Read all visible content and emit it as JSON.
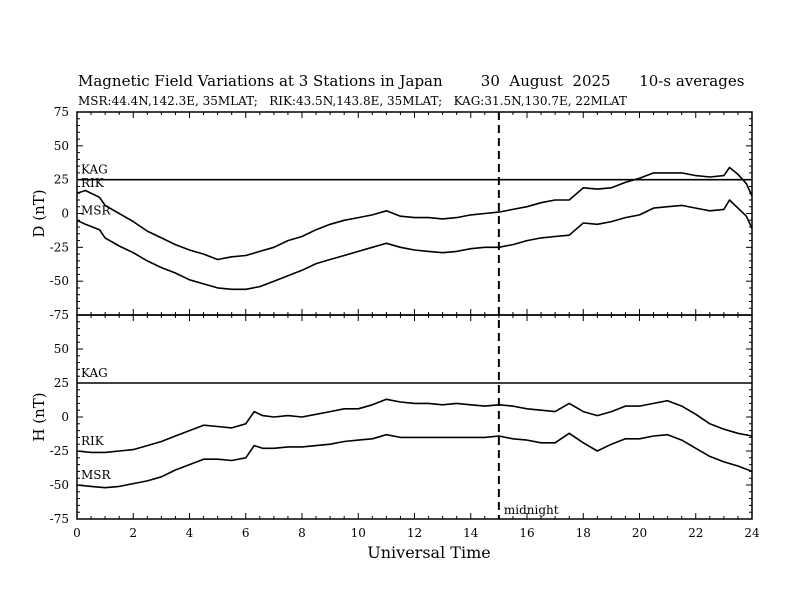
{
  "title": "Magnetic Field Variations at 3 Stations in Japan        30  August  2025      10-s averages",
  "subtitle": "MSR:44.4N,142.3E, 35MLAT;   RIK:43.5N,143.8E, 35MLAT;   KAG:31.5N,130.7E, 22MLAT",
  "chart_data": {
    "type": "line",
    "xlabel": "Universal Time",
    "xlim": [
      0,
      24
    ],
    "xticks": [
      0,
      2,
      4,
      6,
      8,
      10,
      12,
      14,
      16,
      18,
      20,
      22,
      24
    ],
    "annotation": {
      "label": "midnight",
      "x": 15
    },
    "panels": [
      {
        "ylabel": "D (nT)",
        "ylim": [
          -75,
          75
        ],
        "yticks": [
          75,
          50,
          25,
          0,
          -25,
          -50,
          -75
        ],
        "series": [
          {
            "name": "KAG",
            "label": "KAG",
            "points": [
              [
                0,
                25
              ],
              [
                24,
                25
              ]
            ]
          },
          {
            "name": "RIK",
            "label": "RIK",
            "points": [
              [
                0,
                15
              ],
              [
                0.3,
                17
              ],
              [
                0.8,
                12
              ],
              [
                1,
                6
              ],
              [
                1.5,
                0
              ],
              [
                2,
                -6
              ],
              [
                2.5,
                -13
              ],
              [
                3,
                -18
              ],
              [
                3.5,
                -23
              ],
              [
                4,
                -27
              ],
              [
                4.5,
                -30
              ],
              [
                5,
                -34
              ],
              [
                5.5,
                -32
              ],
              [
                6,
                -31
              ],
              [
                6.5,
                -28
              ],
              [
                7,
                -25
              ],
              [
                7.5,
                -20
              ],
              [
                8,
                -17
              ],
              [
                8.5,
                -12
              ],
              [
                9,
                -8
              ],
              [
                9.5,
                -5
              ],
              [
                10,
                -3
              ],
              [
                10.5,
                -1
              ],
              [
                11,
                2
              ],
              [
                11.5,
                -2
              ],
              [
                12,
                -3
              ],
              [
                12.5,
                -3
              ],
              [
                13,
                -4
              ],
              [
                13.5,
                -3
              ],
              [
                14,
                -1
              ],
              [
                14.5,
                0
              ],
              [
                15,
                1
              ],
              [
                15.5,
                3
              ],
              [
                16,
                5
              ],
              [
                16.5,
                8
              ],
              [
                17,
                10
              ],
              [
                17.5,
                10
              ],
              [
                18,
                19
              ],
              [
                18.5,
                18
              ],
              [
                19,
                19
              ],
              [
                19.5,
                23
              ],
              [
                20,
                26
              ],
              [
                20.5,
                30
              ],
              [
                21,
                30
              ],
              [
                21.5,
                30
              ],
              [
                22,
                28
              ],
              [
                22.5,
                27
              ],
              [
                23,
                28
              ],
              [
                23.2,
                34
              ],
              [
                23.5,
                29
              ],
              [
                23.8,
                22
              ],
              [
                24,
                13
              ]
            ]
          },
          {
            "name": "MSR",
            "label": "MSR",
            "points": [
              [
                0,
                -5
              ],
              [
                0.3,
                -8
              ],
              [
                0.8,
                -12
              ],
              [
                1,
                -18
              ],
              [
                1.5,
                -24
              ],
              [
                2,
                -29
              ],
              [
                2.5,
                -35
              ],
              [
                3,
                -40
              ],
              [
                3.5,
                -44
              ],
              [
                4,
                -49
              ],
              [
                4.5,
                -52
              ],
              [
                5,
                -55
              ],
              [
                5.5,
                -56
              ],
              [
                6,
                -56
              ],
              [
                6.5,
                -54
              ],
              [
                7,
                -50
              ],
              [
                7.5,
                -46
              ],
              [
                8,
                -42
              ],
              [
                8.5,
                -37
              ],
              [
                9,
                -34
              ],
              [
                9.5,
                -31
              ],
              [
                10,
                -28
              ],
              [
                10.5,
                -25
              ],
              [
                11,
                -22
              ],
              [
                11.5,
                -25
              ],
              [
                12,
                -27
              ],
              [
                12.5,
                -28
              ],
              [
                13,
                -29
              ],
              [
                13.5,
                -28
              ],
              [
                14,
                -26
              ],
              [
                14.5,
                -25
              ],
              [
                15,
                -25
              ],
              [
                15.5,
                -23
              ],
              [
                16,
                -20
              ],
              [
                16.5,
                -18
              ],
              [
                17,
                -17
              ],
              [
                17.5,
                -16
              ],
              [
                18,
                -7
              ],
              [
                18.5,
                -8
              ],
              [
                19,
                -6
              ],
              [
                19.5,
                -3
              ],
              [
                20,
                -1
              ],
              [
                20.5,
                4
              ],
              [
                21,
                5
              ],
              [
                21.5,
                6
              ],
              [
                22,
                4
              ],
              [
                22.5,
                2
              ],
              [
                23,
                3
              ],
              [
                23.2,
                10
              ],
              [
                23.5,
                4
              ],
              [
                23.8,
                -2
              ],
              [
                24,
                -11
              ]
            ]
          }
        ]
      },
      {
        "ylabel": "H (nT)",
        "ylim": [
          -75,
          75
        ],
        "yticks": [
          75,
          50,
          25,
          0,
          -25,
          -50,
          -75
        ],
        "series": [
          {
            "name": "KAG",
            "label": "KAG",
            "points": [
              [
                0,
                25
              ],
              [
                24,
                25
              ]
            ]
          },
          {
            "name": "RIK",
            "label": "RIK",
            "points": [
              [
                0,
                -25
              ],
              [
                0.5,
                -26
              ],
              [
                1,
                -26
              ],
              [
                1.5,
                -25
              ],
              [
                2,
                -24
              ],
              [
                2.5,
                -21
              ],
              [
                3,
                -18
              ],
              [
                3.5,
                -14
              ],
              [
                4,
                -10
              ],
              [
                4.5,
                -6
              ],
              [
                5,
                -7
              ],
              [
                5.5,
                -8
              ],
              [
                6,
                -5
              ],
              [
                6.3,
                4
              ],
              [
                6.6,
                1
              ],
              [
                7,
                0
              ],
              [
                7.5,
                1
              ],
              [
                8,
                0
              ],
              [
                8.5,
                2
              ],
              [
                9,
                4
              ],
              [
                9.5,
                6
              ],
              [
                10,
                6
              ],
              [
                10.5,
                9
              ],
              [
                11,
                13
              ],
              [
                11.5,
                11
              ],
              [
                12,
                10
              ],
              [
                12.5,
                10
              ],
              [
                13,
                9
              ],
              [
                13.5,
                10
              ],
              [
                14,
                9
              ],
              [
                14.5,
                8
              ],
              [
                15,
                9
              ],
              [
                15.5,
                8
              ],
              [
                16,
                6
              ],
              [
                16.5,
                5
              ],
              [
                17,
                4
              ],
              [
                17.5,
                10
              ],
              [
                18,
                4
              ],
              [
                18.5,
                1
              ],
              [
                19,
                4
              ],
              [
                19.5,
                8
              ],
              [
                20,
                8
              ],
              [
                20.5,
                10
              ],
              [
                21,
                12
              ],
              [
                21.5,
                8
              ],
              [
                22,
                2
              ],
              [
                22.5,
                -5
              ],
              [
                23,
                -9
              ],
              [
                23.5,
                -12
              ],
              [
                24,
                -14
              ]
            ]
          },
          {
            "name": "MSR",
            "label": "MSR",
            "points": [
              [
                0,
                -50
              ],
              [
                0.5,
                -51
              ],
              [
                1,
                -52
              ],
              [
                1.5,
                -51
              ],
              [
                2,
                -49
              ],
              [
                2.5,
                -47
              ],
              [
                3,
                -44
              ],
              [
                3.5,
                -39
              ],
              [
                4,
                -35
              ],
              [
                4.5,
                -31
              ],
              [
                5,
                -31
              ],
              [
                5.5,
                -32
              ],
              [
                6,
                -30
              ],
              [
                6.3,
                -21
              ],
              [
                6.6,
                -23
              ],
              [
                7,
                -23
              ],
              [
                7.5,
                -22
              ],
              [
                8,
                -22
              ],
              [
                8.5,
                -21
              ],
              [
                9,
                -20
              ],
              [
                9.5,
                -18
              ],
              [
                10,
                -17
              ],
              [
                10.5,
                -16
              ],
              [
                11,
                -13
              ],
              [
                11.5,
                -15
              ],
              [
                12,
                -15
              ],
              [
                12.5,
                -15
              ],
              [
                13,
                -15
              ],
              [
                13.5,
                -15
              ],
              [
                14,
                -15
              ],
              [
                14.5,
                -15
              ],
              [
                15,
                -14
              ],
              [
                15.5,
                -16
              ],
              [
                16,
                -17
              ],
              [
                16.5,
                -19
              ],
              [
                17,
                -19
              ],
              [
                17.5,
                -12
              ],
              [
                18,
                -19
              ],
              [
                18.5,
                -25
              ],
              [
                19,
                -20
              ],
              [
                19.5,
                -16
              ],
              [
                20,
                -16
              ],
              [
                20.5,
                -14
              ],
              [
                21,
                -13
              ],
              [
                21.5,
                -17
              ],
              [
                22,
                -23
              ],
              [
                22.5,
                -29
              ],
              [
                23,
                -33
              ],
              [
                23.5,
                -36
              ],
              [
                24,
                -40
              ]
            ]
          }
        ]
      }
    ]
  }
}
